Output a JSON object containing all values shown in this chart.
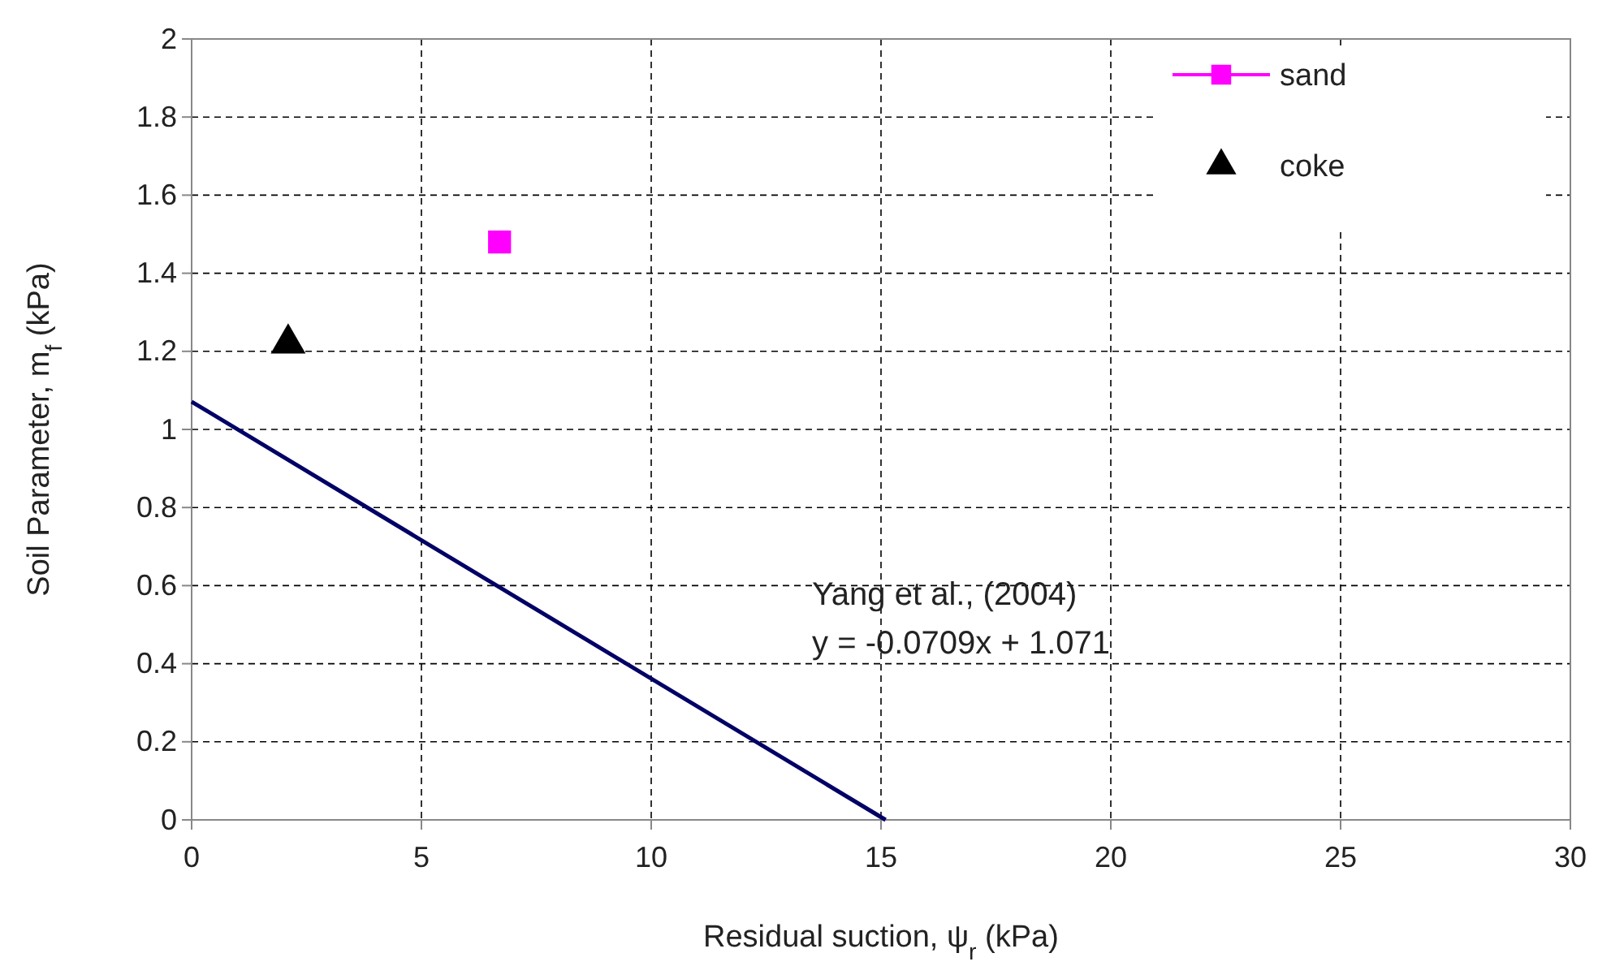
{
  "chart_data": {
    "type": "scatter",
    "xlabel": "Residual suction, ψ$_{r}$  (kPa)",
    "ylabel": "Soil Parameter, m$_{f}$ (kPa)",
    "xlim": [
      0,
      30
    ],
    "xticks": [
      0,
      5,
      10,
      15,
      20,
      25,
      30
    ],
    "ylim": [
      0,
      2
    ],
    "yticks": [
      0,
      0.2,
      0.4,
      0.6,
      0.8,
      1,
      1.2,
      1.4,
      1.6,
      1.8,
      2
    ],
    "grid": true,
    "legend": "top right",
    "series": [
      {
        "name": "sand",
        "marker": "square",
        "color": "#ff00ff",
        "x": [
          6.7
        ],
        "values": [
          1.48
        ]
      },
      {
        "name": "coke",
        "marker": "triangle",
        "color": "#000000",
        "x": [
          2.1
        ],
        "values": [
          1.22
        ]
      },
      {
        "type": "line",
        "marker": "none",
        "color": "#000066",
        "x": [
          0,
          15.1
        ],
        "values": [
          1.071,
          0
        ]
      }
    ],
    "annotations": [
      "Yang et al., (2004)",
      "y = -0.0709x + 1.071"
    ]
  }
}
